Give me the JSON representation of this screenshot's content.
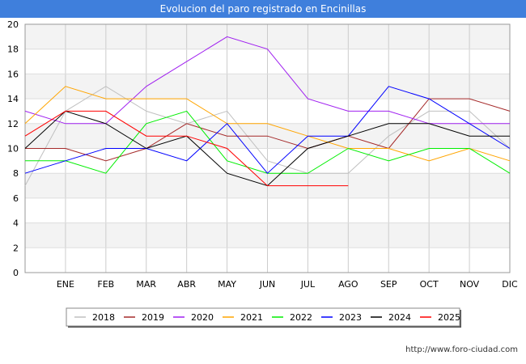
{
  "header": {
    "title": "Evolucion del paro registrado en Encinillas"
  },
  "footer": {
    "url": "http://www.foro-ciudad.com"
  },
  "chart_data": {
    "type": "line",
    "title": "Evolucion del paro registrado en Encinillas",
    "xlabel": "",
    "ylabel": "",
    "categories": [
      "",
      "ENE",
      "FEB",
      "MAR",
      "ABR",
      "MAY",
      "JUN",
      "JUL",
      "AGO",
      "SEP",
      "OCT",
      "NOV",
      "DIC"
    ],
    "yticks": [
      0,
      2,
      4,
      6,
      8,
      10,
      12,
      14,
      16,
      18,
      20
    ],
    "ylim": [
      0,
      20
    ],
    "grid": true,
    "legend_position": "bottom",
    "series": [
      {
        "name": "2018",
        "color": "#c0c0c0",
        "values": [
          7,
          13,
          15,
          13,
          12,
          13,
          9,
          8,
          8,
          11,
          13,
          13,
          10
        ]
      },
      {
        "name": "2019",
        "color": "#a52a2a",
        "values": [
          10,
          10,
          9,
          10,
          12,
          11,
          11,
          10,
          11,
          10,
          14,
          14,
          13
        ]
      },
      {
        "name": "2020",
        "color": "#a020f0",
        "values": [
          13,
          12,
          12,
          15,
          17,
          19,
          18,
          14,
          13,
          13,
          12,
          12,
          12
        ]
      },
      {
        "name": "2021",
        "color": "#ffa500",
        "values": [
          12,
          15,
          14,
          14,
          14,
          12,
          12,
          11,
          10,
          10,
          9,
          10,
          9
        ]
      },
      {
        "name": "2022",
        "color": "#00ee00",
        "values": [
          9,
          9,
          8,
          12,
          13,
          9,
          8,
          8,
          10,
          9,
          10,
          10,
          8
        ]
      },
      {
        "name": "2023",
        "color": "#0000ff",
        "values": [
          8,
          9,
          10,
          10,
          9,
          12,
          8,
          11,
          11,
          15,
          14,
          12,
          10
        ]
      },
      {
        "name": "2024",
        "color": "#000000",
        "values": [
          10,
          13,
          12,
          10,
          11,
          8,
          7,
          10,
          11,
          12,
          12,
          11,
          11
        ]
      },
      {
        "name": "2025",
        "color": "#ff0000",
        "values": [
          11,
          13,
          13,
          11,
          11,
          10,
          7,
          7,
          7,
          null,
          null,
          null,
          null
        ]
      }
    ]
  }
}
